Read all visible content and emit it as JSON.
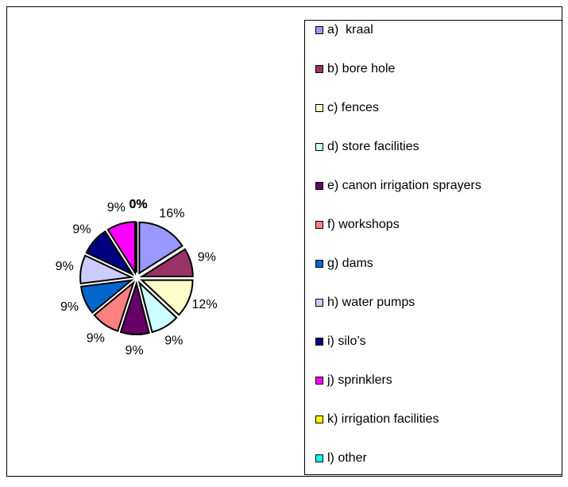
{
  "chart_data": {
    "type": "pie",
    "categories": [
      "a)  kraal",
      "b) bore hole",
      "c) fences",
      "d) store facilities",
      "e) canon irrigation sprayers",
      "f) workshops",
      "g) dams",
      "h) water pumps",
      "i) silo’s",
      "j) sprinklers",
      "k) irrigation facilities",
      "l) other"
    ],
    "values": [
      16,
      9,
      12,
      9,
      9,
      9,
      9,
      9,
      9,
      9,
      0,
      0
    ],
    "value_labels": [
      "16%",
      "9%",
      "12%",
      "9%",
      "9%",
      "9%",
      "9%",
      "9%",
      "9%",
      "9%",
      "0%",
      "0%"
    ],
    "colors": [
      "#9999ff",
      "#993366",
      "#ffffcc",
      "#ccffff",
      "#660066",
      "#ff8080",
      "#0066cc",
      "#ccccff",
      "#000080",
      "#ff00ff",
      "#ffff00",
      "#00ffff"
    ],
    "legend": "right"
  }
}
